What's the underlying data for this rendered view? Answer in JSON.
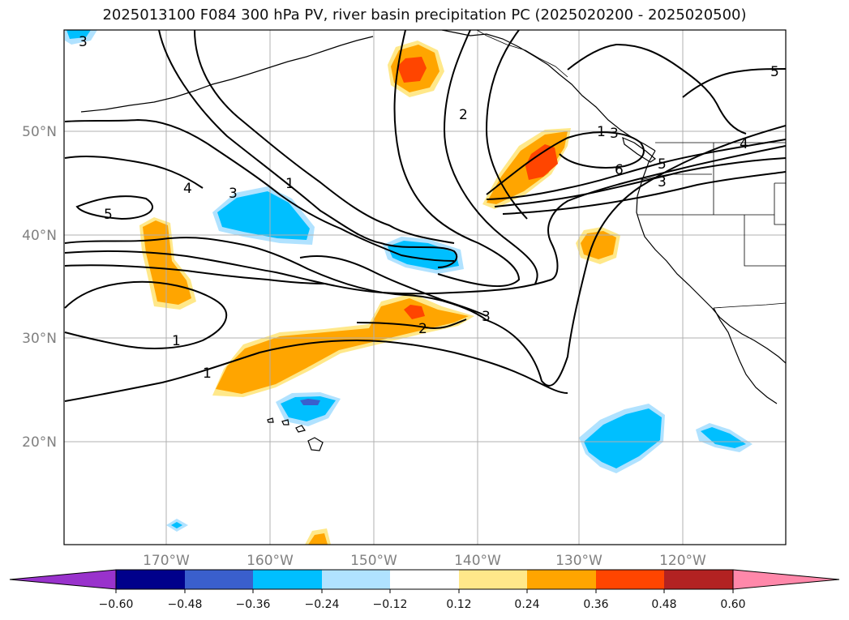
{
  "title": "2025013100 F084 300 hPa PV, river basin precipitation PC (2025020200 - 2025020500)",
  "map": {
    "lon_ticks": [
      "170°W",
      "160°W",
      "150°W",
      "140°W",
      "130°W",
      "120°W"
    ],
    "lat_ticks": [
      "50°N",
      "40°N",
      "30°N",
      "20°N"
    ],
    "gridline_color": "#b0b0b0"
  },
  "contours": {
    "color": "#000000",
    "labels": [
      "3",
      "5",
      "4",
      "3",
      "1",
      "2",
      "5",
      "1",
      "3",
      "2",
      "3",
      "6",
      "5",
      "4",
      "3",
      "1",
      "1",
      "2",
      "3"
    ]
  },
  "colorbar": {
    "tick_labels": [
      "−0.60",
      "−0.48",
      "−0.36",
      "−0.24",
      "−0.12",
      "0.12",
      "0.24",
      "0.36",
      "0.48",
      "0.60"
    ],
    "colors": [
      "#9932cc",
      "#00008b",
      "#3a5fcd",
      "#00bfff",
      "#b0e2ff",
      "#ffffff",
      "#ffe88a",
      "#ffa500",
      "#ff4500",
      "#b22222",
      "#ff88aa"
    ]
  }
}
